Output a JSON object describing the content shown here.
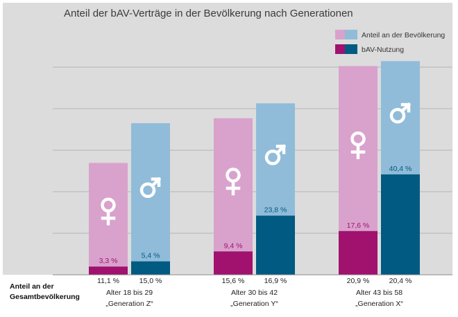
{
  "chart_data": {
    "type": "bar",
    "title": "Anteil der bAV-Verträge in der Bevölkerung nach Generationen",
    "legend": {
      "placement": "top-right",
      "items": [
        {
          "label": "Anteil an der Bevölkerung",
          "colors": [
            "#d8a2cc",
            "#90bcd9"
          ]
        },
        {
          "label": "bAV-Nutzung",
          "colors": [
            "#a0126e",
            "#005a82"
          ]
        }
      ]
    },
    "colors": {
      "female_population": "#d8a2cc",
      "male_population": "#90bcd9",
      "female_bav": "#a0126e",
      "male_bav": "#005a82",
      "female_value_text": "#a0126e",
      "male_value_text": "#005a82",
      "background": "#dcdcdc",
      "grid": "#b3b3b3"
    },
    "row_label_line1": "Anteil an der",
    "row_label_line2": "Gesamtbevölkerung",
    "grid": true,
    "ylim": [
      0,
      100
    ],
    "groups": [
      {
        "age": "Alter 18 bis 29",
        "name": "„Generation Z“",
        "female": {
          "population_label": "11,1 %",
          "population_bar": 45,
          "bav": 3.3,
          "bav_label": "3,3 %",
          "icon": "female-symbol-icon"
        },
        "male": {
          "population_label": "15,0 %",
          "population_bar": 61,
          "bav": 5.4,
          "bav_label": "5,4 %",
          "icon": "male-symbol-icon"
        }
      },
      {
        "age": "Alter 30 bis 42",
        "name": "„Generation Y“",
        "female": {
          "population_label": "15,6 %",
          "population_bar": 63,
          "bav": 9.4,
          "bav_label": "9,4 %",
          "icon": "female-symbol-icon"
        },
        "male": {
          "population_label": "16,9 %",
          "population_bar": 69,
          "bav": 23.8,
          "bav_label": "23,8 %",
          "icon": "male-symbol-icon"
        }
      },
      {
        "age": "Alter 43 bis 58",
        "name": "„Generation X“",
        "female": {
          "population_label": "20,9 %",
          "population_bar": 84,
          "bav": 17.6,
          "bav_label": "17,6 %",
          "icon": "female-symbol-icon"
        },
        "male": {
          "population_label": "20,4 %",
          "population_bar": 86,
          "bav": 40.4,
          "bav_label": "40,4 %",
          "icon": "male-symbol-icon"
        }
      }
    ]
  }
}
